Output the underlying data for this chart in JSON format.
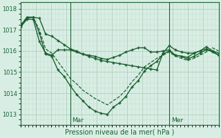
{
  "background_color": "#cce8d8",
  "plot_bg_color": "#d8eee4",
  "grid_color_major": "#b0ccbc",
  "grid_color_minor": "#c8ddd4",
  "line_color": "#1a6030",
  "ylabel_text": "Pression niveau de la mer( hPa )",
  "ylim": [
    1012.5,
    1018.3
  ],
  "yticks": [
    1013,
    1014,
    1015,
    1016,
    1017
  ],
  "xmin": 0,
  "xmax": 52,
  "vline_positions": [
    13,
    39
  ],
  "vline_labels": [
    "Mar",
    "Mer"
  ],
  "series": [
    {
      "y": [
        1017.2,
        1017.55,
        1017.6,
        1017.55,
        1016.8,
        1016.7,
        1016.5,
        1016.3,
        1016.1,
        1016.0,
        1015.85,
        1015.75,
        1015.65,
        1015.55,
        1015.5,
        1015.45,
        1015.4,
        1015.35,
        1015.3,
        1015.25,
        1015.2,
        1015.15,
        1015.1,
        1015.9,
        1016.25,
        1016.05,
        1015.95,
        1015.9,
        1015.9,
        1016.0,
        1016.1,
        1015.95,
        1015.8
      ],
      "linestyle": "-",
      "marker": true,
      "lw": 1.0
    },
    {
      "y": [
        1017.2,
        1017.6,
        1017.6,
        1016.85,
        1015.85,
        1015.75,
        1015.1,
        1014.8,
        1014.35,
        1013.95,
        1013.65,
        1013.35,
        1013.15,
        1013.05,
        1013.0,
        1013.35,
        1013.55,
        1013.85,
        1014.3,
        1014.6,
        1015.05,
        1015.3,
        1015.5,
        1015.85,
        1016.0,
        1015.8,
        1015.75,
        1015.7,
        1015.9,
        1016.0,
        1016.2,
        1016.0,
        1015.8
      ],
      "linestyle": "-",
      "marker": true,
      "lw": 1.0
    },
    {
      "y": [
        1017.25,
        1017.6,
        1017.6,
        1017.0,
        1016.1,
        1015.9,
        1015.5,
        1015.1,
        1014.7,
        1014.45,
        1014.15,
        1013.95,
        1013.75,
        1013.6,
        1013.45,
        1013.65,
        1013.85,
        1014.15,
        1014.55,
        1014.85,
        1015.25,
        1015.45,
        1015.65,
        1015.8,
        1015.95,
        1015.75,
        1015.65,
        1015.55,
        1015.65,
        1015.8,
        1015.95,
        1016.15,
        1016.0
      ],
      "linestyle": "--",
      "marker": false,
      "lw": 0.9
    },
    {
      "y": [
        1017.15,
        1017.5,
        1017.5,
        1016.45,
        1015.9,
        1015.8,
        1016.05,
        1016.05,
        1016.05,
        1015.95,
        1015.85,
        1015.8,
        1015.75,
        1015.65,
        1015.6,
        1015.7,
        1015.8,
        1015.95,
        1016.05,
        1016.15,
        1016.15,
        1015.95,
        1015.95,
        1016.0,
        1016.05,
        1015.8,
        1015.75,
        1015.6,
        1015.75,
        1015.9,
        1016.05,
        1016.0,
        1015.9
      ],
      "linestyle": "-",
      "marker": true,
      "lw": 1.0
    }
  ]
}
